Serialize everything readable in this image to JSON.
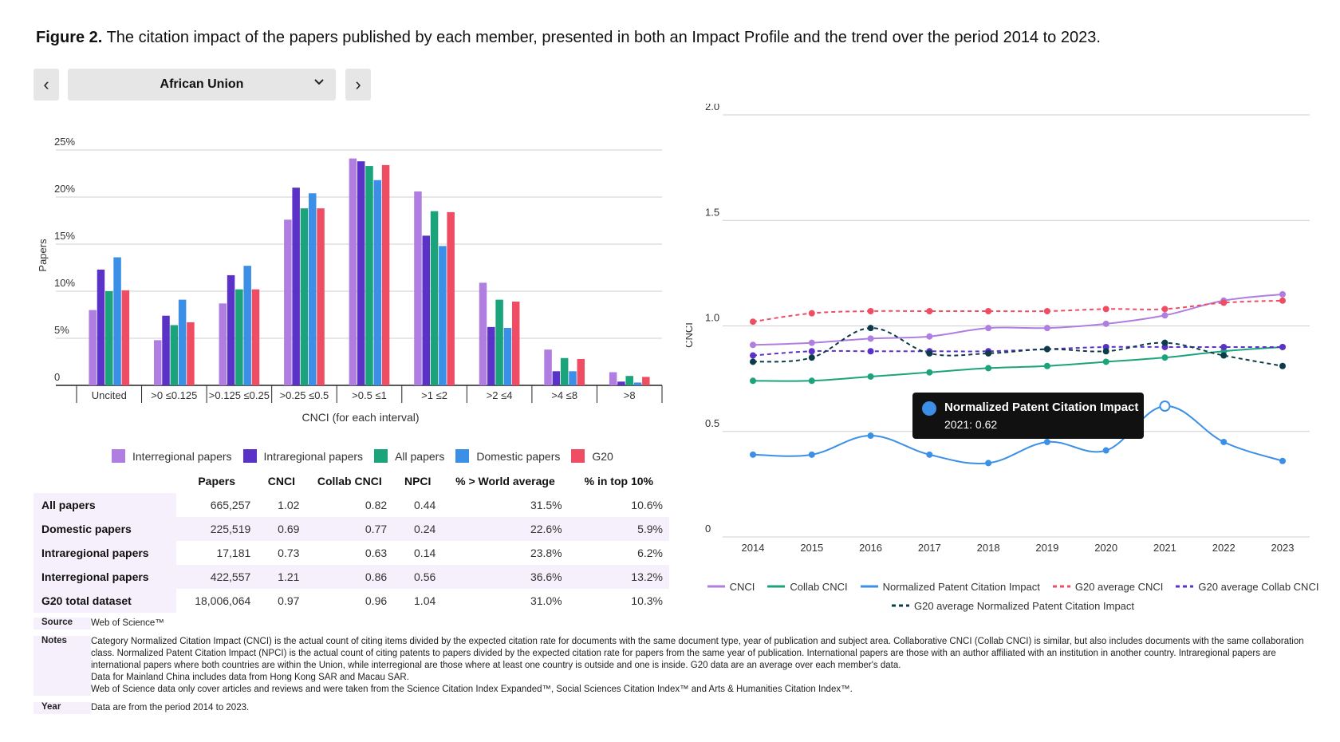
{
  "figure": {
    "label": "Figure 2.",
    "caption": "The citation impact of the papers published by each member, presented in both an Impact Profile and the trend over the period 2014 to 2023."
  },
  "selector": {
    "prev": "‹",
    "value": "African Union",
    "next": "›"
  },
  "colors": {
    "interregional": "#b07ee0",
    "intraregional": "#5b32c7",
    "all": "#1ba37c",
    "domestic": "#3b8fe6",
    "g20": "#ee4d64",
    "cnci": "#b07ee0",
    "collab": "#1ba37c",
    "npci": "#3b8fe6",
    "g20_cnci": "#ee4d64",
    "g20_collab": "#5b32c7",
    "g20_npci": "#0e3b4a"
  },
  "chart_data": [
    {
      "type": "bar",
      "title": "",
      "xlabel": "CNCI (for each interval)",
      "ylabel": "Papers",
      "ylim": [
        0,
        25
      ],
      "yticks": [
        "0",
        "5%",
        "10%",
        "15%",
        "20%",
        "25%"
      ],
      "categories": [
        "Uncited",
        ">0 ≤0.125",
        ">0.125 ≤0.25",
        ">0.25 ≤0.5",
        ">0.5 ≤1",
        ">1 ≤2",
        ">2 ≤4",
        ">4 ≤8",
        ">8"
      ],
      "series": [
        {
          "name": "Interregional papers",
          "values": [
            8.0,
            4.8,
            8.7,
            17.6,
            24.1,
            20.6,
            10.9,
            3.8,
            1.4
          ]
        },
        {
          "name": "Intraregional papers",
          "values": [
            12.3,
            7.4,
            11.7,
            21.0,
            23.8,
            15.9,
            6.2,
            1.5,
            0.4
          ]
        },
        {
          "name": "All papers",
          "values": [
            10.0,
            6.4,
            10.2,
            18.8,
            23.3,
            18.5,
            9.1,
            2.9,
            1.0
          ]
        },
        {
          "name": "Domestic papers",
          "values": [
            13.6,
            9.1,
            12.7,
            20.4,
            21.8,
            14.8,
            6.1,
            1.5,
            0.3
          ]
        },
        {
          "name": "G20",
          "values": [
            10.1,
            6.7,
            10.2,
            18.8,
            23.4,
            18.4,
            8.9,
            2.8,
            0.9
          ]
        }
      ],
      "legend": "bottom"
    },
    {
      "type": "line",
      "title": "",
      "xlabel": "",
      "ylabel": "CNCI",
      "ylim": [
        0,
        2.0
      ],
      "yticks": [
        "0",
        "0.5",
        "1.0",
        "1.5",
        "2.0"
      ],
      "x": [
        "2014",
        "2015",
        "2016",
        "2017",
        "2018",
        "2019",
        "2020",
        "2021",
        "2022",
        "2023"
      ],
      "series": [
        {
          "name": "CNCI",
          "style": "solid",
          "values": [
            0.91,
            0.92,
            0.94,
            0.95,
            0.99,
            0.99,
            1.01,
            1.05,
            1.12,
            1.15
          ]
        },
        {
          "name": "Collab CNCI",
          "style": "solid",
          "values": [
            0.74,
            0.74,
            0.76,
            0.78,
            0.8,
            0.81,
            0.83,
            0.85,
            0.88,
            0.9
          ]
        },
        {
          "name": "Normalized Patent Citation Impact",
          "style": "solid",
          "values": [
            0.39,
            0.39,
            0.48,
            0.39,
            0.35,
            0.45,
            0.41,
            0.62,
            0.45,
            0.36
          ]
        },
        {
          "name": "G20 average CNCI",
          "style": "dashed",
          "values": [
            1.02,
            1.06,
            1.07,
            1.07,
            1.07,
            1.07,
            1.08,
            1.08,
            1.11,
            1.12
          ]
        },
        {
          "name": "G20 average Collab CNCI",
          "style": "dashed",
          "values": [
            0.86,
            0.88,
            0.88,
            0.88,
            0.88,
            0.89,
            0.9,
            0.9,
            0.9,
            0.9
          ]
        },
        {
          "name": "G20 average Normalized Patent Citation Impact",
          "style": "dashed",
          "values": [
            0.83,
            0.85,
            0.99,
            0.87,
            0.87,
            0.89,
            0.88,
            0.92,
            0.86,
            0.81
          ]
        }
      ],
      "tooltip": {
        "series": "Normalized Patent Citation Impact",
        "text": "2021: 0.62"
      },
      "legend": "bottom"
    }
  ],
  "table": {
    "headers": [
      "",
      "Papers",
      "CNCI",
      "Collab CNCI",
      "NPCI",
      "% > World average",
      "% in top 10%"
    ],
    "rows": [
      [
        "All papers",
        "665,257",
        "1.02",
        "0.82",
        "0.44",
        "31.5%",
        "10.6%"
      ],
      [
        "Domestic papers",
        "225,519",
        "0.69",
        "0.77",
        "0.24",
        "22.6%",
        "5.9%"
      ],
      [
        "Intraregional papers",
        "17,181",
        "0.73",
        "0.63",
        "0.14",
        "23.8%",
        "6.2%"
      ],
      [
        "Interregional papers",
        "422,557",
        "1.21",
        "0.86",
        "0.56",
        "36.6%",
        "13.2%"
      ],
      [
        "G20 total dataset",
        "18,006,064",
        "0.97",
        "0.96",
        "1.04",
        "31.0%",
        "10.3%"
      ]
    ]
  },
  "notes": {
    "source_label": "Source",
    "source": "Web of Science™",
    "notes_label": "Notes",
    "notes_lines": [
      "Category Normalized Citation Impact (CNCI) is the actual count of citing items divided by the expected citation rate for documents with the same document type, year of publication and subject area. Collaborative CNCI (Collab CNCI) is similar, but also includes documents with the same collaboration class. Normalized Patent Citation Impact (NPCI) is the actual count of citing patents to papers divided by the expected citation rate for papers from the same year of publication. International papers are those with an author affiliated with an institution in another country. Intraregional papers are international papers where both countries are within the Union, while interregional are those where at least one country is outside and one is inside. G20 data are an average over each member's data.",
      "Data for Mainland China includes data from Hong Kong SAR and Macau SAR.",
      "Web of Science data only cover articles and reviews and were taken from the Science Citation Index Expanded™, Social Sciences Citation Index™ and Arts & Humanities Citation Index™."
    ],
    "year_label": "Year",
    "year": "Data are from the period 2014 to 2023."
  }
}
